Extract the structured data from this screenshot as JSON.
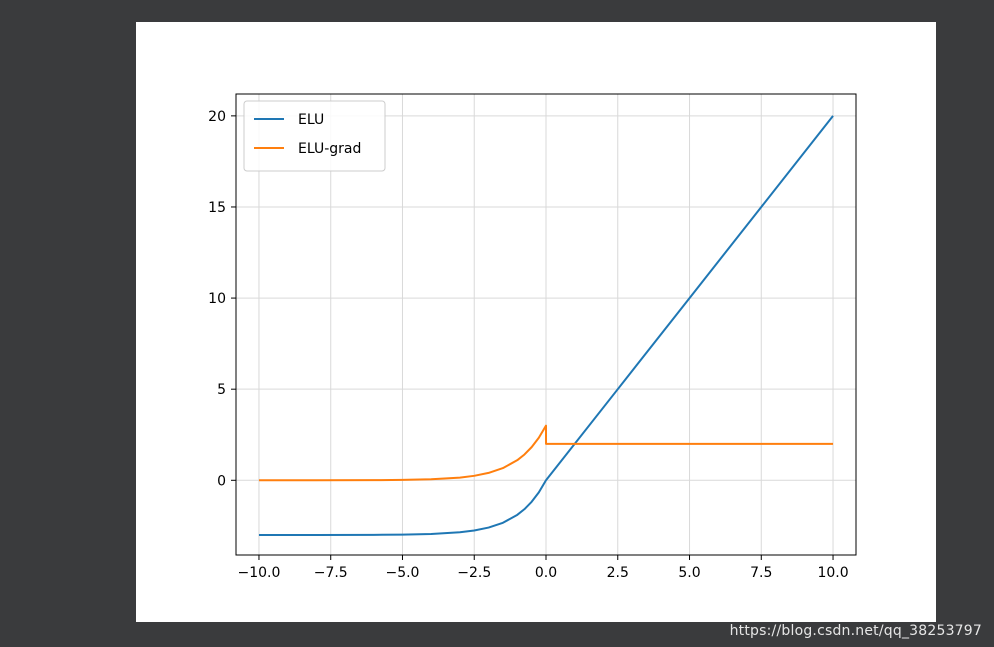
{
  "chart_data": {
    "type": "line",
    "title": "",
    "xlabel": "",
    "ylabel": "",
    "xlim": [
      -10.8,
      10.8
    ],
    "ylim": [
      -4.1,
      21.2
    ],
    "x_ticks": [
      -10.0,
      -7.5,
      -5.0,
      -2.5,
      0.0,
      2.5,
      5.0,
      7.5,
      10.0
    ],
    "x_tick_labels": [
      "−10.0",
      "−7.5",
      "−5.0",
      "−2.5",
      "0.0",
      "2.5",
      "5.0",
      "7.5",
      "10.0"
    ],
    "y_ticks": [
      0,
      5,
      10,
      15,
      20
    ],
    "y_tick_labels": [
      "0",
      "5",
      "10",
      "15",
      "20"
    ],
    "grid": true,
    "legend_position": "top-left",
    "series": [
      {
        "name": "ELU",
        "color": "#1f77b4",
        "x": [
          -10,
          -8,
          -6,
          -5,
          -4,
          -3,
          -2.5,
          -2,
          -1.5,
          -1,
          -0.75,
          -0.5,
          -0.25,
          0,
          2.5,
          5,
          7.5,
          10
        ],
        "y": [
          -3.0,
          -2.999,
          -2.993,
          -2.98,
          -2.945,
          -2.851,
          -2.754,
          -2.594,
          -2.331,
          -1.896,
          -1.583,
          -1.18,
          -0.664,
          0.0,
          5.0,
          10.0,
          15.0,
          20.0
        ]
      },
      {
        "name": "ELU-grad",
        "color": "#ff7f0e",
        "x": [
          -10,
          -8,
          -6,
          -5,
          -4,
          -3,
          -2.5,
          -2,
          -1.5,
          -1,
          -0.75,
          -0.5,
          -0.25,
          0,
          0.001,
          10
        ],
        "y": [
          0.0,
          0.001,
          0.007,
          0.02,
          0.055,
          0.149,
          0.246,
          0.406,
          0.669,
          1.104,
          1.417,
          1.82,
          2.336,
          3.0,
          2.0,
          2.0
        ]
      }
    ]
  },
  "watermark": "https://blog.csdn.net/qq_38253797"
}
